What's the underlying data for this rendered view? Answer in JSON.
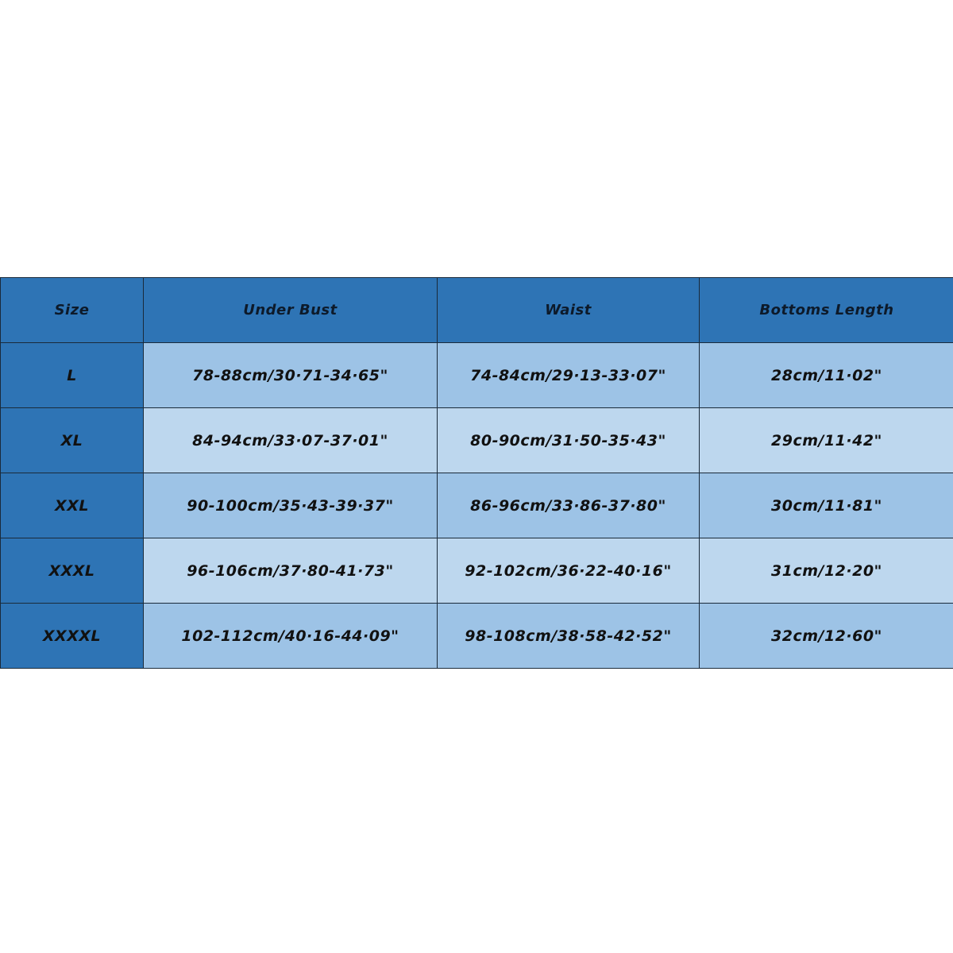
{
  "headers": [
    "Size",
    "Under Bust",
    "Waist",
    "Bottoms Length"
  ],
  "rows": [
    {
      "size": "L",
      "under_bust": "78-88cm/30·71-34·65\"",
      "waist": "74-84cm/29·13-33·07\"",
      "bottoms_length": "28cm/11·02\""
    },
    {
      "size": "XL",
      "under_bust": "84-94cm/33·07-37·01\"",
      "waist": "80-90cm/31·50-35·43\"",
      "bottoms_length": "29cm/11·42\""
    },
    {
      "size": "XXL",
      "under_bust": "90-100cm/35·43-39·37\"",
      "waist": "86-96cm/33·86-37·80\"",
      "bottoms_length": "30cm/11·81\""
    },
    {
      "size": "XXXL",
      "under_bust": "96-106cm/37·80-41·73\"",
      "waist": "92-102cm/36·22-40·16\"",
      "bottoms_length": "31cm/12·20\""
    },
    {
      "size": "XXXXL",
      "under_bust": "102-112cm/40·16-44·09\"",
      "waist": "98-108cm/38·58-42·52\"",
      "bottoms_length": "32cm/12·60\""
    }
  ],
  "colors": {
    "header": "#2e74b5",
    "row_dark": "#9dc3e6",
    "row_light": "#bdd7ee"
  }
}
